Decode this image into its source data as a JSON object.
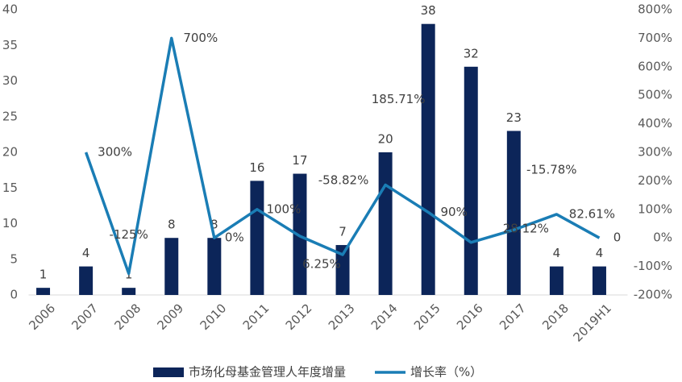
{
  "chart_data": {
    "type": "bar",
    "categories": [
      "2006",
      "2007",
      "2008",
      "2009",
      "2010",
      "2011",
      "2012",
      "2013",
      "2014",
      "2015",
      "2016",
      "2017",
      "2018",
      "2019H1"
    ],
    "series": [
      {
        "name": "市场化母基金管理人年度增量",
        "type": "bar",
        "color": "#0c2559",
        "values": [
          1,
          4,
          1,
          8,
          8,
          16,
          17,
          7,
          20,
          38,
          32,
          23,
          4,
          4
        ]
      },
      {
        "name": "增长率（%）",
        "type": "line",
        "axis": "y2",
        "color": "#1a7db5",
        "values": [
          null,
          300,
          -125,
          700,
          0,
          100,
          6.25,
          -58.82,
          185.71,
          90,
          -15.78,
          28.12,
          82.61,
          0
        ],
        "value_labels": [
          null,
          "300%",
          "-125%",
          "700%",
          "0%",
          "100%",
          "6.25%",
          "-58.82%",
          "185.71%",
          "90%",
          "-15.78%",
          "28.12%",
          "82.61%",
          "0"
        ]
      }
    ],
    "ylim": [
      0,
      40
    ],
    "yticks": [
      0,
      5,
      10,
      15,
      20,
      25,
      30,
      35,
      40
    ],
    "y2lim": [
      -200,
      800
    ],
    "y2ticks": [
      {
        "value": -200,
        "label": "-200%"
      },
      {
        "value": -100,
        "label": "-100%"
      },
      {
        "value": 0,
        "label": "0%"
      },
      {
        "value": 100,
        "label": "100%"
      },
      {
        "value": 200,
        "label": "200%"
      },
      {
        "value": 300,
        "label": "300%"
      },
      {
        "value": 400,
        "label": "400%"
      },
      {
        "value": 500,
        "label": "500%"
      },
      {
        "value": 600,
        "label": "600%"
      },
      {
        "value": 700,
        "label": "700%"
      },
      {
        "value": 800,
        "label": "800%"
      }
    ],
    "grid": false,
    "legend": "bottom"
  }
}
